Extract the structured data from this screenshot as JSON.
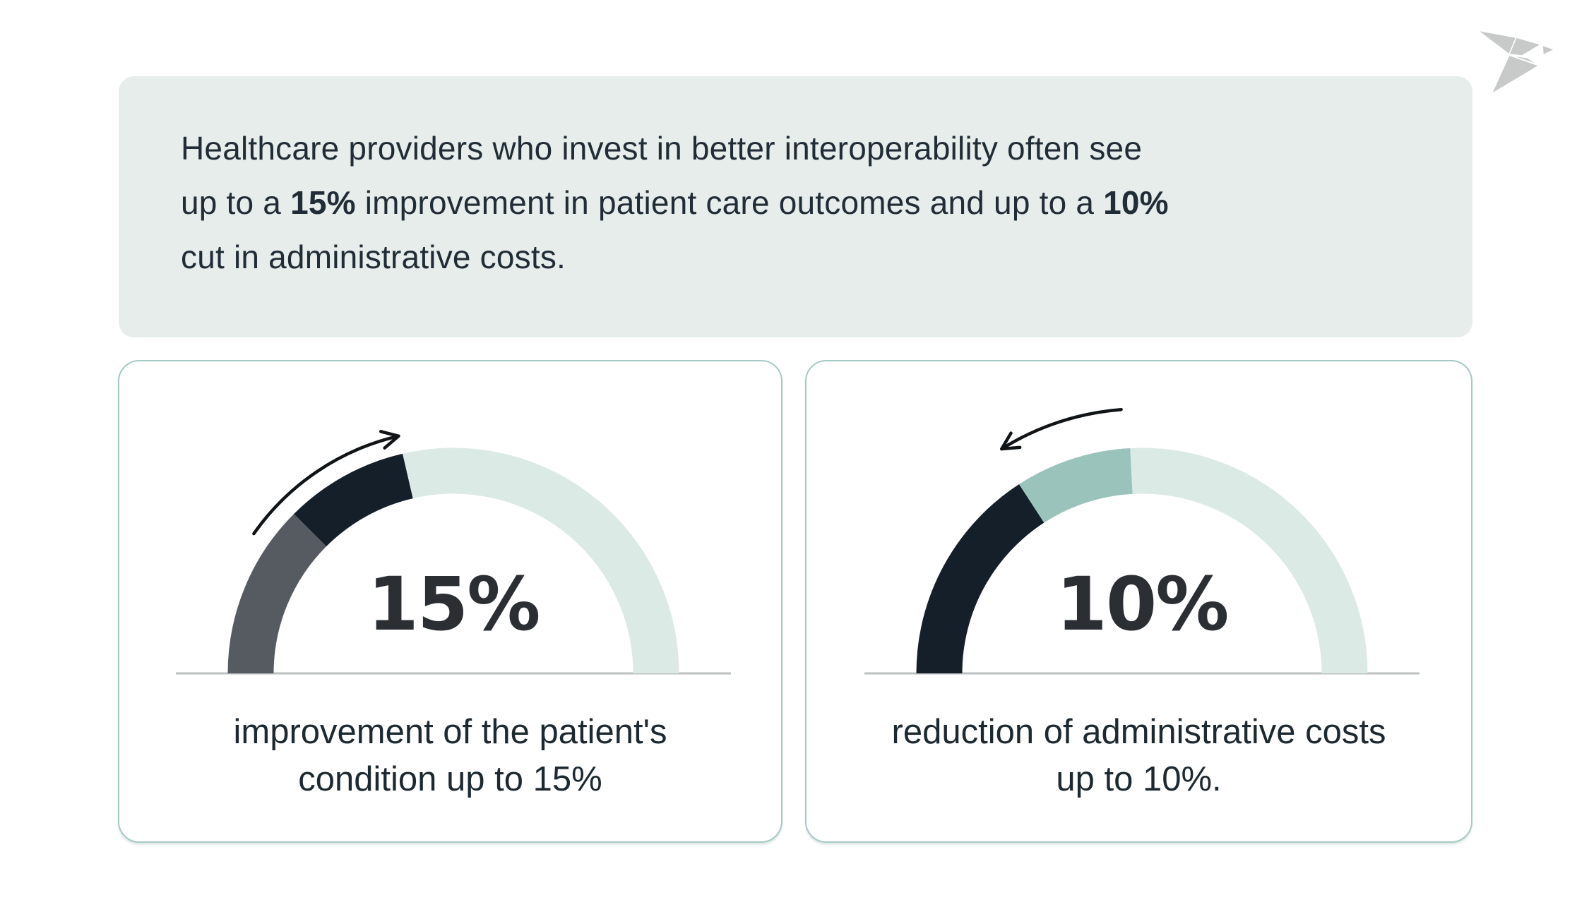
{
  "palette": {
    "banner_bg": "#e7edeb",
    "heading_text": "#212d36",
    "caption_text": "#1d2931",
    "number": "#2b2f33",
    "card_border": "#a6cac6",
    "mint": "#dceae6",
    "teal": "#9ac4bb",
    "dark": "#151f29",
    "gray": "#565b62",
    "baseline": "#bcc0c1",
    "arrow": "#101417",
    "logo": "#c7cac9"
  },
  "banner": {
    "lines": [
      {
        "segments": [
          {
            "text": "Healthcare providers who invest in better interoperability often see",
            "bold": false
          }
        ]
      },
      {
        "segments": [
          {
            "text": "up to a ",
            "bold": false
          },
          {
            "text": "15%",
            "bold": true
          },
          {
            "text": " improvement in patient care outcomes and up to a ",
            "bold": false
          },
          {
            "text": "10%",
            "bold": true
          }
        ]
      },
      {
        "segments": [
          {
            "text": "cut in administrative costs.",
            "bold": false
          }
        ]
      }
    ]
  },
  "chart_data": [
    {
      "type": "gauge",
      "value": 15,
      "unit": "%",
      "value_label": "15%",
      "caption": "improvement of the patient's\ncondition up to 15%",
      "max": 100,
      "layout": "semicircle 180deg, filled from left",
      "trend": "up",
      "segments": [
        {
          "color": "gray",
          "from_deg": 180,
          "to_deg": 135
        },
        {
          "color": "dark",
          "from_deg": 135,
          "to_deg": 103
        },
        {
          "color": "mint",
          "from_deg": 103,
          "to_deg": 0
        }
      ],
      "arrow": {
        "radius": 345,
        "from_deg": 145,
        "to_deg": 103
      }
    },
    {
      "type": "gauge",
      "value": 10,
      "unit": "%",
      "value_label": "10%",
      "caption": "reduction of administrative costs\nup to 10%.",
      "max": 100,
      "layout": "semicircle 180deg, filled from left",
      "trend": "down",
      "segments": [
        {
          "color": "dark",
          "from_deg": 180,
          "to_deg": 123
        },
        {
          "color": "teal",
          "from_deg": 123,
          "to_deg": 93
        },
        {
          "color": "mint",
          "from_deg": 93,
          "to_deg": 0
        }
      ],
      "arrow": {
        "radius": 375,
        "from_deg": 94.5,
        "to_deg": 122
      }
    }
  ]
}
